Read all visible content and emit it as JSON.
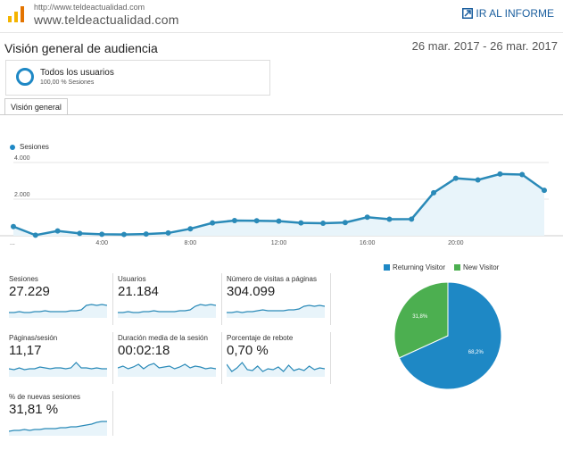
{
  "header": {
    "site_url": "http://www.teldeactualidad.com",
    "site_name": "www.teldeactualidad.com",
    "goto_report": "IR AL INFORME"
  },
  "page": {
    "title": "Visión general de audiencia",
    "date_range": "26 mar. 2017 - 26 mar. 2017"
  },
  "segment": {
    "name": "Todos los usuarios",
    "sub": "100,00 % Sesiones"
  },
  "tabs": [
    {
      "label": "Visión general"
    }
  ],
  "colors": {
    "accent": "#1e88c5",
    "line": "#2a8ab8",
    "green": "#4caf50",
    "fill": "#e8f4fa"
  },
  "chart_data": [
    {
      "type": "line",
      "series": [
        {
          "name": "Sesiones",
          "values": [
            500,
            30,
            260,
            130,
            80,
            70,
            90,
            150,
            380,
            700,
            830,
            820,
            800,
            700,
            680,
            720,
            1010,
            900,
            910,
            2350,
            3140,
            3050,
            3370,
            3340,
            2480
          ]
        }
      ],
      "x": [
        0,
        1,
        2,
        3,
        4,
        5,
        6,
        7,
        8,
        9,
        10,
        11,
        12,
        13,
        14,
        15,
        16,
        17,
        18,
        19,
        20,
        21,
        22,
        23,
        24
      ],
      "x_tick_labels": [
        "...",
        "4:00",
        "8:00",
        "12:00",
        "16:00",
        "20:00"
      ],
      "y_tick_labels": [
        "4.000",
        "2.000"
      ],
      "ylim": [
        0,
        4000
      ]
    },
    {
      "type": "pie",
      "labels": [
        "Returning Visitor",
        "New Visitor"
      ],
      "values": [
        68.2,
        31.8
      ],
      "slice_labels": [
        "68,2%",
        "31,8%"
      ],
      "colors": [
        "#1e88c5",
        "#4caf50"
      ],
      "legend_position": "top"
    }
  ],
  "metrics": [
    {
      "label": "Sesiones",
      "value": "27.229"
    },
    {
      "label": "Usuarios",
      "value": "21.184"
    },
    {
      "label": "Número de visitas a páginas",
      "value": "304.099"
    },
    {
      "label": "Páginas/sesión",
      "value": "11,17"
    },
    {
      "label": "Duración media de la sesión",
      "value": "00:02:18"
    },
    {
      "label": "Porcentaje de rebote",
      "value": "0,70 %"
    },
    {
      "label": "% de nuevas sesiones",
      "value": "31,81 %"
    }
  ]
}
